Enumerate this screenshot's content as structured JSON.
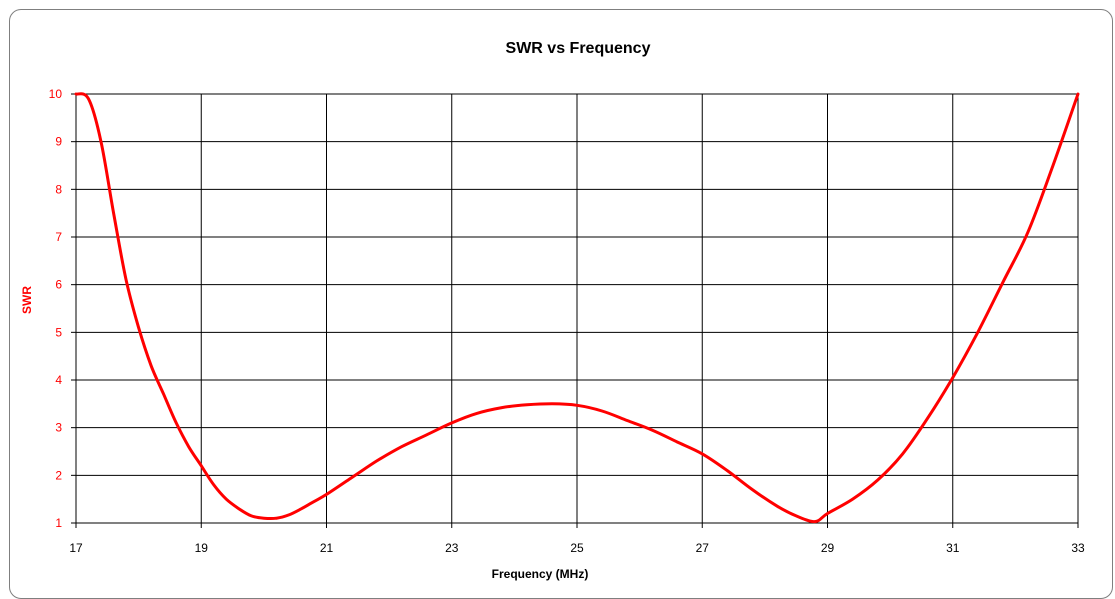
{
  "chart_data": {
    "type": "line",
    "title": "SWR  vs  Frequency",
    "xlabel": "Frequency (MHz)",
    "ylabel": "SWR",
    "xlim": [
      17,
      33
    ],
    "ylim": [
      1,
      10
    ],
    "xticks": [
      17,
      19,
      21,
      23,
      25,
      27,
      29,
      31,
      33
    ],
    "yticks": [
      1,
      2,
      3,
      4,
      5,
      6,
      7,
      8,
      9,
      10
    ],
    "grid": true,
    "legend": "none",
    "colors": {
      "series": "#ff0000",
      "ytick": "#ff0000",
      "ylabel": "#ff0000",
      "grid": "#000000"
    },
    "series": [
      {
        "x": [
          17.0,
          17.2,
          17.4,
          17.6,
          17.8,
          18.0,
          18.2,
          18.4,
          18.6,
          18.8,
          19.0,
          19.2,
          19.4,
          19.6,
          19.8,
          20.0,
          20.2,
          20.4,
          20.6,
          20.8,
          21.0,
          21.4,
          21.8,
          22.2,
          22.6,
          23.0,
          23.4,
          23.8,
          24.2,
          24.6,
          25.0,
          25.4,
          25.8,
          26.2,
          26.6,
          27.0,
          27.4,
          27.8,
          28.2,
          28.5,
          28.8,
          29.0,
          29.4,
          29.8,
          30.2,
          30.6,
          31.0,
          31.4,
          31.8,
          32.2,
          32.6,
          33.0
        ],
        "y": [
          10.0,
          9.9,
          9.0,
          7.5,
          6.1,
          5.1,
          4.3,
          3.7,
          3.1,
          2.6,
          2.2,
          1.8,
          1.5,
          1.3,
          1.15,
          1.1,
          1.1,
          1.17,
          1.3,
          1.45,
          1.6,
          1.95,
          2.3,
          2.6,
          2.85,
          3.1,
          3.3,
          3.42,
          3.48,
          3.5,
          3.47,
          3.35,
          3.15,
          2.95,
          2.7,
          2.45,
          2.1,
          1.7,
          1.35,
          1.15,
          1.03,
          1.2,
          1.5,
          1.9,
          2.45,
          3.2,
          4.05,
          5.0,
          6.05,
          7.1,
          8.5,
          10.0
        ]
      }
    ]
  }
}
